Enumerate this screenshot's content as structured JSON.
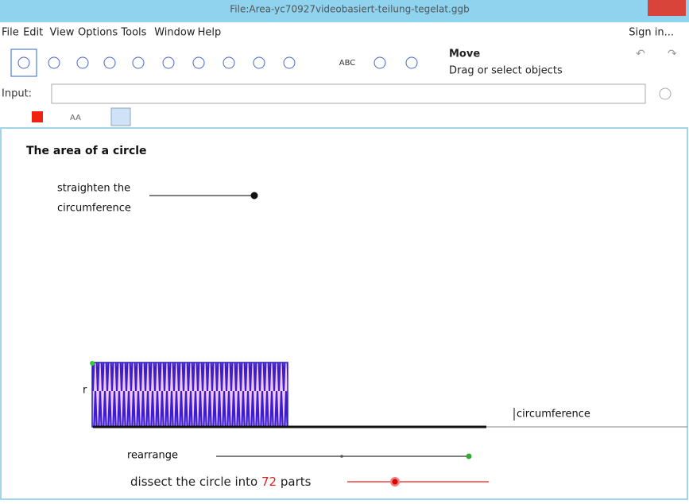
{
  "window": {
    "title": "File:Area-yc70927videobasiert-teilung-tegelat.ggb"
  },
  "menu": [
    "File",
    "Edit",
    "View",
    "Options",
    "Tools",
    "Window",
    "Help"
  ],
  "sign_in": "Sign in...",
  "toolbar": {
    "text_tool": "ABC",
    "tool_name": "Move",
    "tool_help": "Drag or select objects"
  },
  "input": {
    "label": "Input:"
  },
  "style_bar": {
    "font_button": "AA"
  },
  "graphics": {
    "title": "The area of a circle",
    "straighten_slider": {
      "label_line1": "straighten the",
      "label_line2": "circumference"
    },
    "radius_label": "r",
    "circumference_label": "circumference",
    "rearrange_slider": {
      "label": "rearrange"
    },
    "dissect_slider": {
      "label_before": "dissect the circle into",
      "value": "72",
      "label_after": "parts"
    }
  }
}
